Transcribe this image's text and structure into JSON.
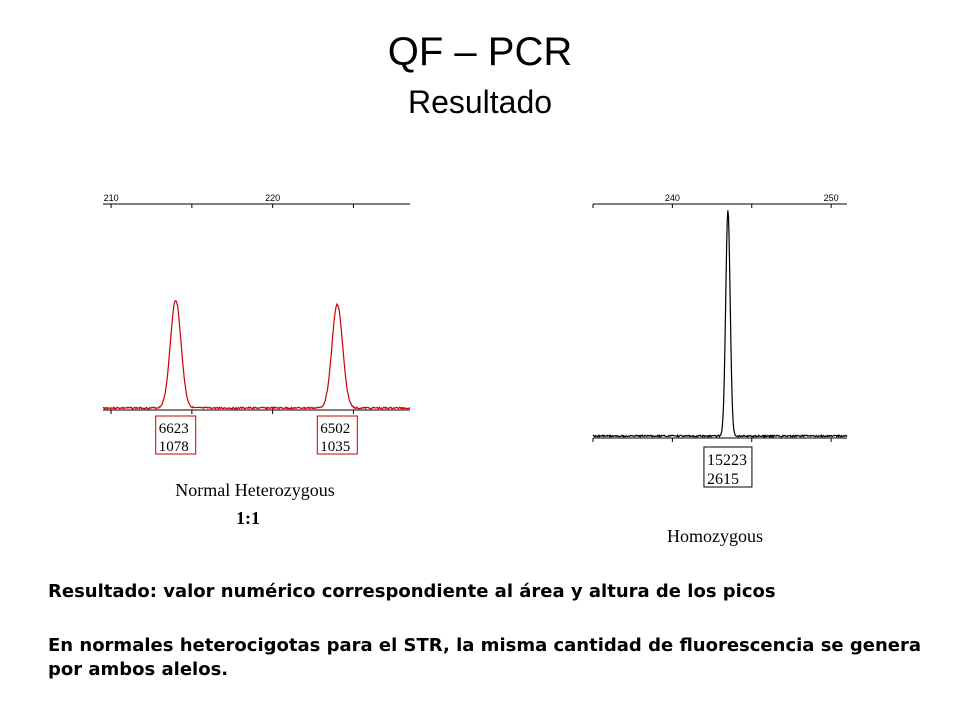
{
  "slide": {
    "title": "QF – PCR",
    "subtitle": "Resultado",
    "caption_1": "Resultado: valor numérico correspondiente al área y altura de los picos",
    "caption_2": "En normales heterocigotas para el STR, la misma cantidad de fluorescencia se genera por ambos alelos."
  },
  "chart_data": [
    {
      "type": "line",
      "title": "Normal Heterozygous",
      "annotation": "1:1",
      "x_tick_labels": [
        "210",
        "220"
      ],
      "x_tick_values": [
        210,
        220
      ],
      "xlim": [
        209.5,
        228.5
      ],
      "color": "#cc0000",
      "peaks": [
        {
          "x": 214,
          "area": "6623",
          "height": "1078"
        },
        {
          "x": 224,
          "area": "6502",
          "height": "1035"
        }
      ]
    },
    {
      "type": "line",
      "title": "Homozygous",
      "x_tick_labels": [
        "240",
        "250"
      ],
      "x_tick_values": [
        240,
        250
      ],
      "xlim": [
        235,
        251
      ],
      "color": "#000000",
      "peaks": [
        {
          "x": 243.5,
          "area": "15223",
          "height": "2615"
        }
      ]
    }
  ]
}
